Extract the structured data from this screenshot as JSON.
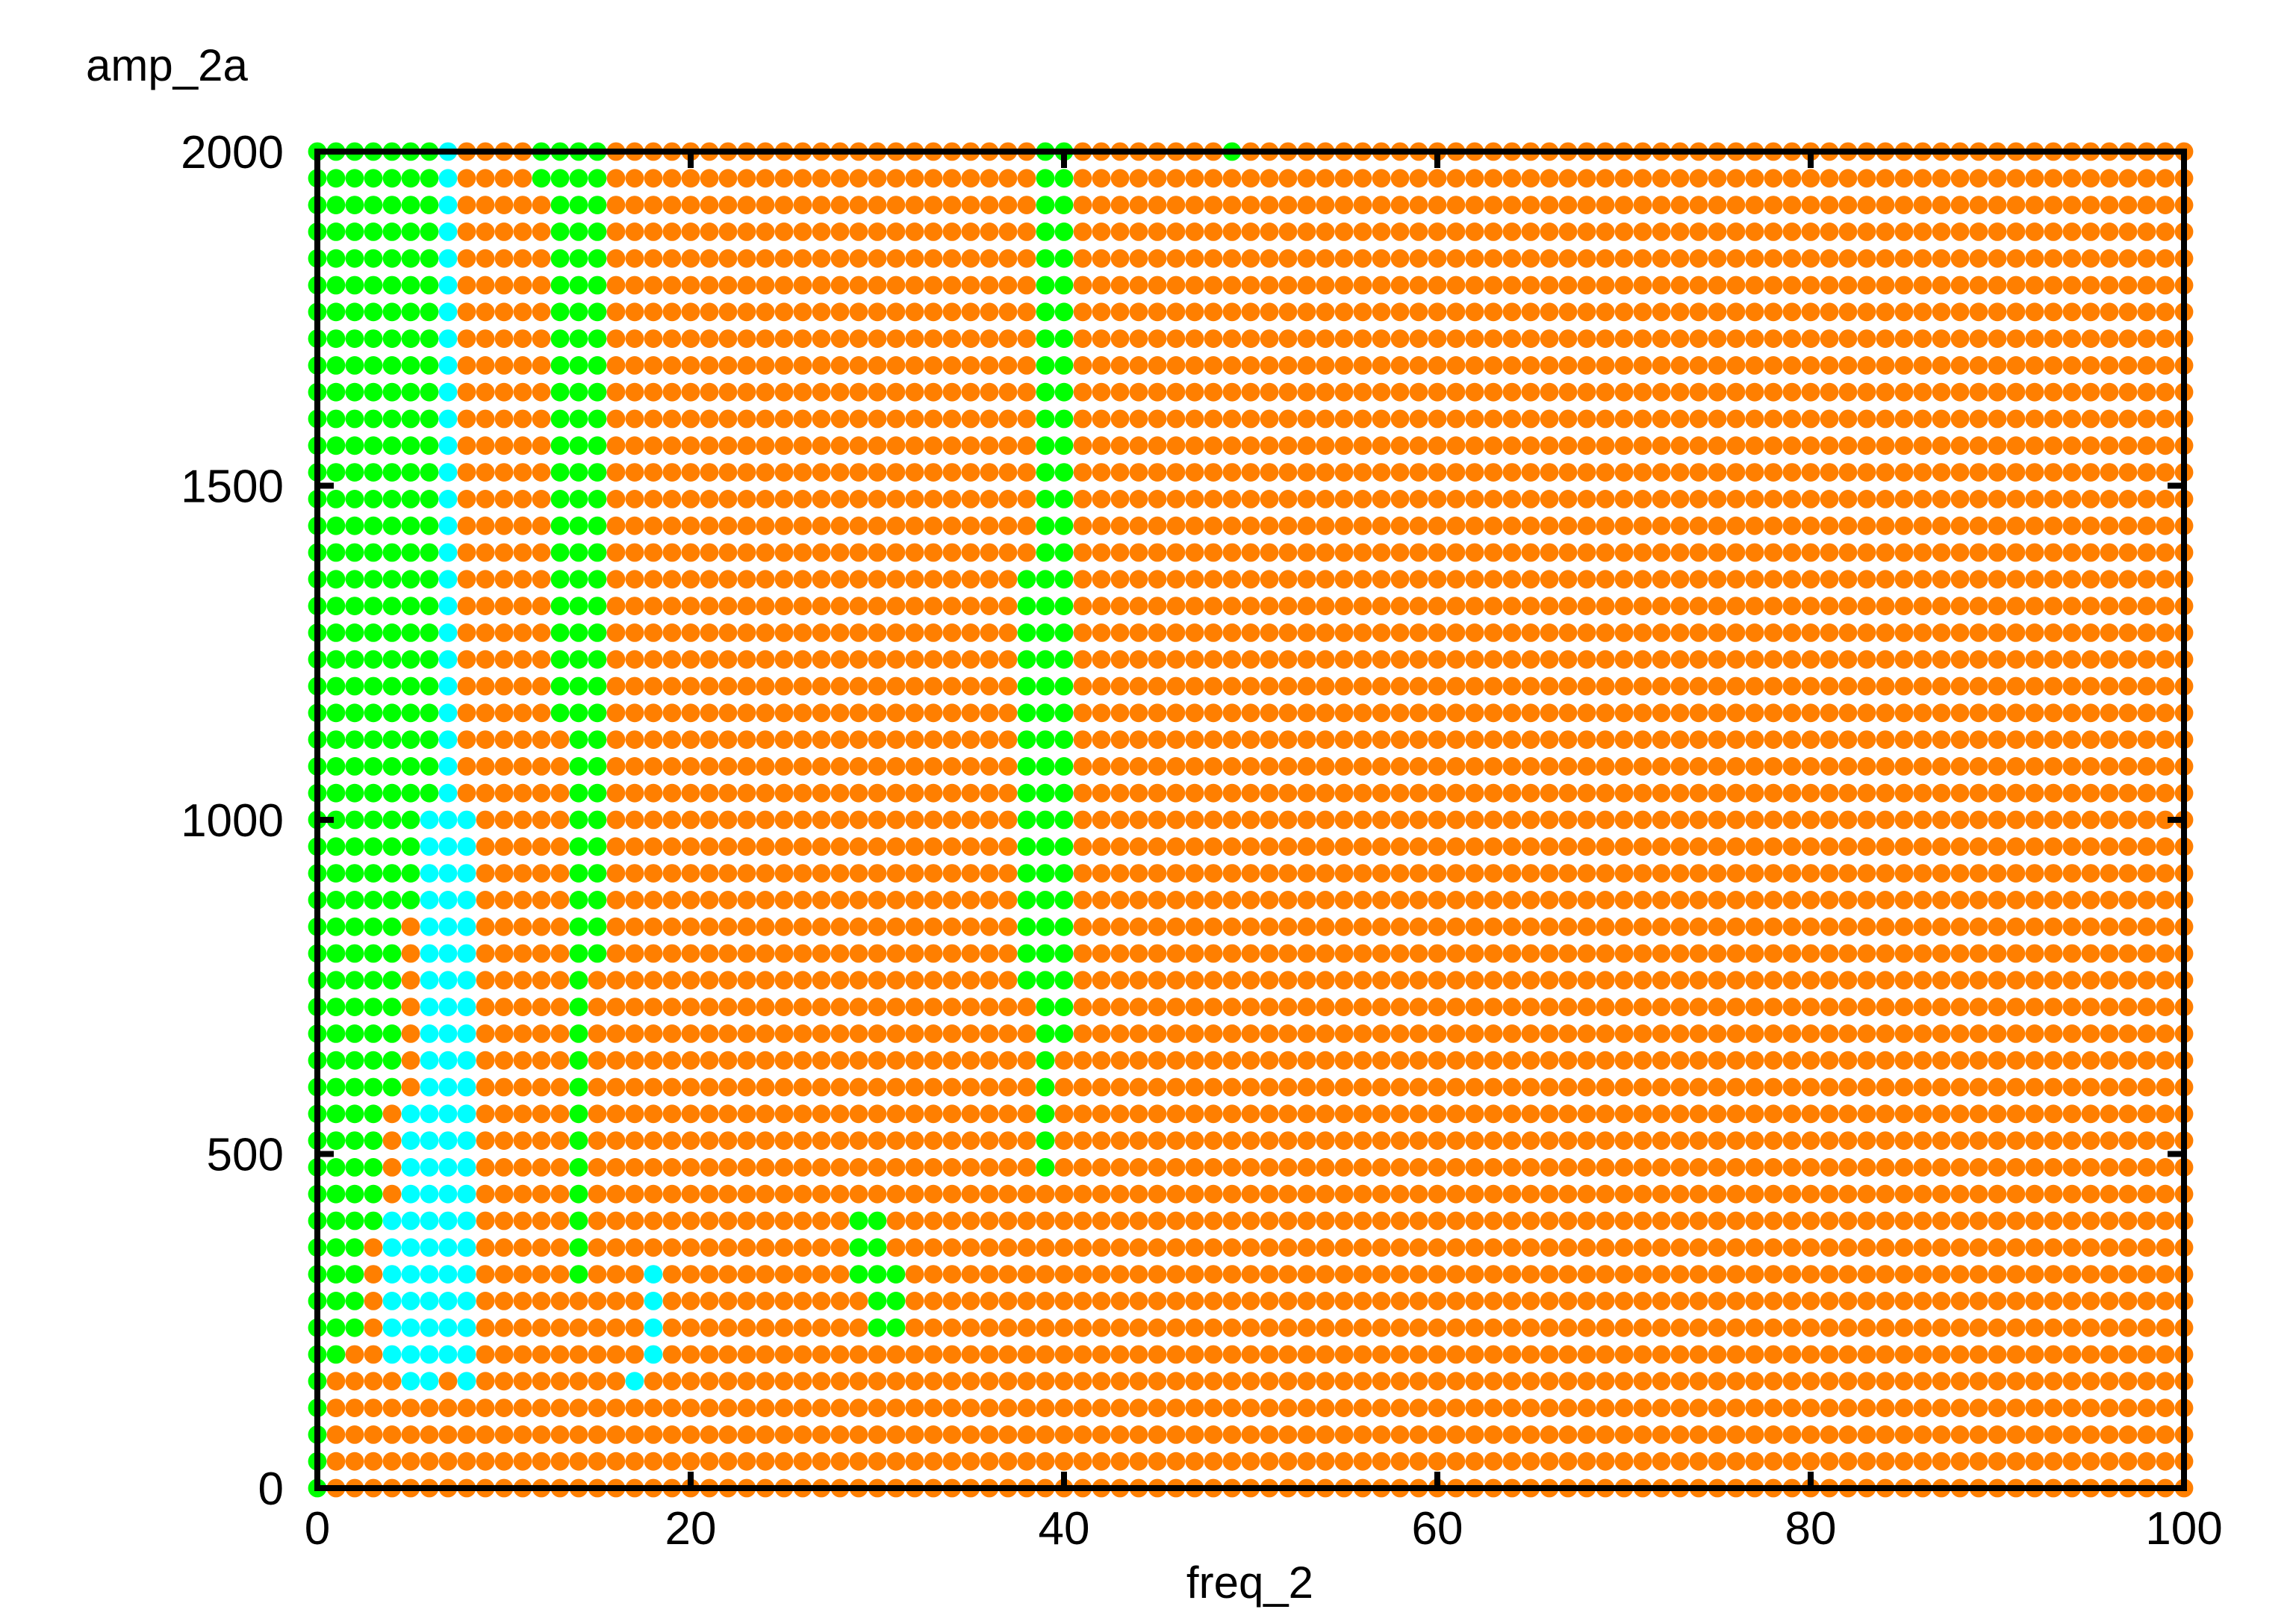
{
  "chart_data": {
    "type": "scatter",
    "xlabel": "freq_2",
    "ylabel": "amp_2a",
    "xlim": [
      0,
      100
    ],
    "ylim": [
      0,
      2000
    ],
    "x_ticks": [
      "0",
      "20",
      "40",
      "60",
      "80",
      "100"
    ],
    "y_ticks": [
      "0",
      "500",
      "1000",
      "1500",
      "2000"
    ],
    "x_tick_values": [
      0,
      20,
      40,
      60,
      80,
      100
    ],
    "y_tick_values": [
      0,
      500,
      1000,
      1500,
      2000
    ],
    "grid_spacing": {
      "x": 1,
      "y": 40
    },
    "categories": [
      "orange",
      "green",
      "cyan"
    ],
    "colors": {
      "orange": "#ff7f00",
      "green": "#00ff00",
      "cyan": "#00ffff",
      "frame": "#000000"
    },
    "default_category": "orange",
    "regions": [
      {
        "category": "green",
        "x": [
          0,
          0
        ],
        "y": [
          0,
          2000
        ]
      },
      {
        "category": "green",
        "x": [
          1,
          6
        ],
        "y": [
          1040,
          2000
        ]
      },
      {
        "category": "cyan",
        "x": [
          7,
          7
        ],
        "y": [
          1040,
          2000
        ]
      },
      {
        "category": "green",
        "x": [
          1,
          5
        ],
        "y": [
          880,
          1000
        ]
      },
      {
        "category": "cyan",
        "x": [
          6,
          8
        ],
        "y": [
          880,
          1000
        ]
      },
      {
        "category": "green",
        "x": [
          1,
          4
        ],
        "y": [
          600,
          840
        ]
      },
      {
        "category": "cyan",
        "x": [
          6,
          8
        ],
        "y": [
          600,
          840
        ]
      },
      {
        "category": "green",
        "x": [
          1,
          3
        ],
        "y": [
          440,
          560
        ]
      },
      {
        "category": "cyan",
        "x": [
          5,
          8
        ],
        "y": [
          440,
          560
        ]
      },
      {
        "category": "green",
        "x": [
          1,
          3
        ],
        "y": [
          400,
          400
        ]
      },
      {
        "category": "cyan",
        "x": [
          4,
          8
        ],
        "y": [
          400,
          400
        ]
      },
      {
        "category": "green",
        "x": [
          1,
          2
        ],
        "y": [
          240,
          360
        ]
      },
      {
        "category": "cyan",
        "x": [
          4,
          8
        ],
        "y": [
          200,
          360
        ]
      },
      {
        "category": "green",
        "x": [
          1,
          1
        ],
        "y": [
          200,
          200
        ]
      },
      {
        "category": "cyan",
        "x": [
          5,
          6
        ],
        "y": [
          160,
          160
        ]
      },
      {
        "category": "cyan",
        "x": [
          8,
          8
        ],
        "y": [
          160,
          160
        ]
      },
      {
        "category": "green",
        "x": [
          12,
          15
        ],
        "y": [
          1960,
          2000
        ]
      },
      {
        "category": "green",
        "x": [
          13,
          15
        ],
        "y": [
          1160,
          1920
        ]
      },
      {
        "category": "green",
        "x": [
          14,
          15
        ],
        "y": [
          800,
          1120
        ]
      },
      {
        "category": "green",
        "x": [
          14,
          14
        ],
        "y": [
          320,
          760
        ]
      },
      {
        "category": "cyan",
        "x": [
          18,
          18
        ],
        "y": [
          200,
          320
        ]
      },
      {
        "category": "cyan",
        "x": [
          17,
          17
        ],
        "y": [
          160,
          160
        ]
      },
      {
        "category": "green",
        "x": [
          29,
          30
        ],
        "y": [
          360,
          400
        ]
      },
      {
        "category": "green",
        "x": [
          29,
          31
        ],
        "y": [
          320,
          320
        ]
      },
      {
        "category": "green",
        "x": [
          30,
          31
        ],
        "y": [
          240,
          280
        ]
      },
      {
        "category": "green",
        "x": [
          39,
          40
        ],
        "y": [
          1400,
          2000
        ]
      },
      {
        "category": "green",
        "x": [
          38,
          40
        ],
        "y": [
          760,
          1360
        ]
      },
      {
        "category": "green",
        "x": [
          39,
          40
        ],
        "y": [
          680,
          720
        ]
      },
      {
        "category": "green",
        "x": [
          39,
          39
        ],
        "y": [
          480,
          640
        ]
      },
      {
        "category": "green",
        "x": [
          49,
          49
        ],
        "y": [
          2000,
          2000
        ]
      }
    ]
  }
}
